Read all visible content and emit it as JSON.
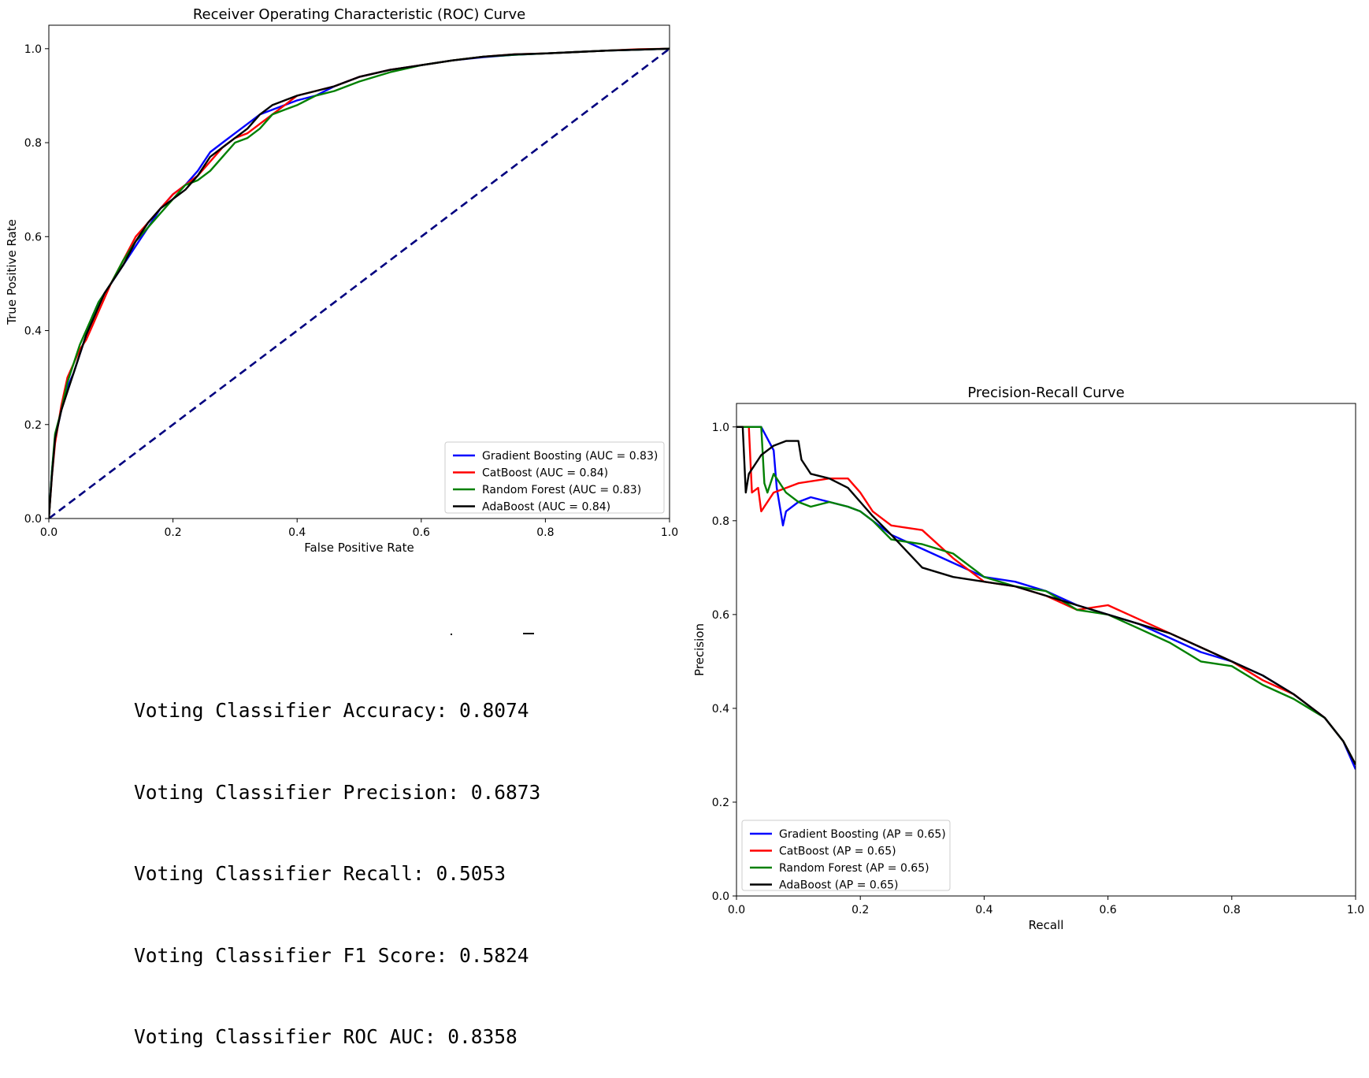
{
  "chart_data": [
    {
      "type": "line",
      "title": "Receiver Operating Characteristic (ROC) Curve",
      "xlabel": "False Positive Rate",
      "ylabel": "True Positive Rate",
      "xlim": [
        0.0,
        1.0
      ],
      "ylim": [
        0.0,
        1.05
      ],
      "xticks": [
        "0.0",
        "0.2",
        "0.4",
        "0.6",
        "0.8",
        "1.0"
      ],
      "yticks": [
        "0.0",
        "0.2",
        "0.4",
        "0.6",
        "0.8",
        "1.0"
      ],
      "legend_position": "lower-right",
      "reference_line": {
        "x": [
          0,
          1
        ],
        "y": [
          0,
          1
        ],
        "color": "#00007f",
        "style": "dashed"
      },
      "series": [
        {
          "name": "Gradient Boosting (AUC = 0.83)",
          "color": "#0000ff",
          "x": [
            0.0,
            0.005,
            0.01,
            0.02,
            0.03,
            0.04,
            0.05,
            0.06,
            0.07,
            0.08,
            0.09,
            0.1,
            0.12,
            0.14,
            0.16,
            0.18,
            0.2,
            0.22,
            0.24,
            0.26,
            0.28,
            0.3,
            0.32,
            0.34,
            0.36,
            0.38,
            0.4,
            0.43,
            0.46,
            0.5,
            0.55,
            0.6,
            0.65,
            0.7,
            0.75,
            0.8,
            0.85,
            0.9,
            0.95,
            1.0
          ],
          "y": [
            0.0,
            0.1,
            0.17,
            0.23,
            0.28,
            0.31,
            0.35,
            0.39,
            0.43,
            0.46,
            0.48,
            0.5,
            0.54,
            0.58,
            0.62,
            0.66,
            0.69,
            0.71,
            0.74,
            0.78,
            0.8,
            0.82,
            0.84,
            0.86,
            0.87,
            0.88,
            0.89,
            0.9,
            0.92,
            0.94,
            0.955,
            0.965,
            0.975,
            0.982,
            0.987,
            0.99,
            0.993,
            0.996,
            0.998,
            1.0
          ]
        },
        {
          "name": "CatBoost (AUC = 0.84)",
          "color": "#ff0000",
          "x": [
            0.0,
            0.005,
            0.01,
            0.02,
            0.03,
            0.04,
            0.05,
            0.06,
            0.07,
            0.08,
            0.09,
            0.1,
            0.12,
            0.14,
            0.16,
            0.18,
            0.2,
            0.22,
            0.24,
            0.26,
            0.28,
            0.3,
            0.32,
            0.34,
            0.36,
            0.38,
            0.4,
            0.43,
            0.46,
            0.5,
            0.55,
            0.6,
            0.65,
            0.7,
            0.75,
            0.8,
            0.85,
            0.9,
            0.95,
            1.0
          ],
          "y": [
            0.0,
            0.09,
            0.16,
            0.24,
            0.3,
            0.33,
            0.36,
            0.38,
            0.41,
            0.44,
            0.47,
            0.5,
            0.55,
            0.6,
            0.63,
            0.66,
            0.69,
            0.71,
            0.73,
            0.76,
            0.79,
            0.81,
            0.82,
            0.84,
            0.86,
            0.88,
            0.9,
            0.91,
            0.92,
            0.94,
            0.955,
            0.965,
            0.975,
            0.983,
            0.988,
            0.99,
            0.993,
            0.996,
            0.999,
            1.0
          ]
        },
        {
          "name": "Random Forest (AUC = 0.83)",
          "color": "#008000",
          "x": [
            0.0,
            0.005,
            0.01,
            0.02,
            0.03,
            0.04,
            0.05,
            0.06,
            0.07,
            0.08,
            0.09,
            0.1,
            0.12,
            0.14,
            0.16,
            0.18,
            0.2,
            0.22,
            0.24,
            0.26,
            0.28,
            0.3,
            0.32,
            0.34,
            0.36,
            0.38,
            0.4,
            0.43,
            0.46,
            0.5,
            0.55,
            0.6,
            0.65,
            0.7,
            0.75,
            0.8,
            0.85,
            0.9,
            0.95,
            1.0
          ],
          "y": [
            0.0,
            0.1,
            0.18,
            0.23,
            0.29,
            0.33,
            0.37,
            0.4,
            0.43,
            0.46,
            0.48,
            0.5,
            0.55,
            0.59,
            0.62,
            0.65,
            0.68,
            0.71,
            0.72,
            0.74,
            0.77,
            0.8,
            0.81,
            0.83,
            0.86,
            0.87,
            0.88,
            0.9,
            0.91,
            0.93,
            0.95,
            0.965,
            0.975,
            0.983,
            0.987,
            0.99,
            0.993,
            0.996,
            0.998,
            1.0
          ]
        },
        {
          "name": "AdaBoost (AUC = 0.84)",
          "color": "#000000",
          "x": [
            0.0,
            0.005,
            0.01,
            0.02,
            0.03,
            0.04,
            0.05,
            0.06,
            0.07,
            0.08,
            0.09,
            0.1,
            0.12,
            0.14,
            0.16,
            0.18,
            0.2,
            0.22,
            0.24,
            0.26,
            0.28,
            0.3,
            0.32,
            0.34,
            0.36,
            0.38,
            0.4,
            0.43,
            0.46,
            0.5,
            0.55,
            0.6,
            0.65,
            0.7,
            0.75,
            0.8,
            0.85,
            0.9,
            0.95,
            1.0
          ],
          "y": [
            0.0,
            0.09,
            0.17,
            0.23,
            0.27,
            0.31,
            0.35,
            0.39,
            0.42,
            0.45,
            0.48,
            0.5,
            0.54,
            0.59,
            0.63,
            0.66,
            0.68,
            0.7,
            0.73,
            0.77,
            0.79,
            0.81,
            0.83,
            0.86,
            0.88,
            0.89,
            0.9,
            0.91,
            0.92,
            0.94,
            0.955,
            0.965,
            0.975,
            0.983,
            0.988,
            0.99,
            0.993,
            0.996,
            0.998,
            1.0
          ]
        }
      ]
    },
    {
      "type": "line",
      "title": "Precision-Recall Curve",
      "xlabel": "Recall",
      "ylabel": "Precision",
      "xlim": [
        0.0,
        1.0
      ],
      "ylim": [
        0.0,
        1.05
      ],
      "xticks": [
        "0.0",
        "0.2",
        "0.4",
        "0.6",
        "0.8",
        "1.0"
      ],
      "yticks": [
        "0.0",
        "0.2",
        "0.4",
        "0.6",
        "0.8",
        "1.0"
      ],
      "legend_position": "lower-left",
      "series": [
        {
          "name": "Gradient Boosting (AP = 0.65)",
          "color": "#0000ff",
          "x": [
            0.0,
            0.02,
            0.04,
            0.06,
            0.065,
            0.075,
            0.08,
            0.1,
            0.12,
            0.15,
            0.18,
            0.2,
            0.22,
            0.25,
            0.3,
            0.35,
            0.4,
            0.45,
            0.5,
            0.55,
            0.6,
            0.65,
            0.7,
            0.75,
            0.8,
            0.85,
            0.9,
            0.95,
            0.98,
            1.0
          ],
          "y": [
            1.0,
            1.0,
            1.0,
            0.95,
            0.87,
            0.79,
            0.82,
            0.84,
            0.85,
            0.84,
            0.83,
            0.82,
            0.8,
            0.77,
            0.74,
            0.71,
            0.68,
            0.67,
            0.65,
            0.62,
            0.6,
            0.58,
            0.55,
            0.52,
            0.5,
            0.47,
            0.43,
            0.38,
            0.33,
            0.27
          ]
        },
        {
          "name": "CatBoost (AP = 0.65)",
          "color": "#ff0000",
          "x": [
            0.0,
            0.02,
            0.025,
            0.035,
            0.04,
            0.06,
            0.1,
            0.15,
            0.18,
            0.2,
            0.22,
            0.25,
            0.3,
            0.35,
            0.4,
            0.45,
            0.5,
            0.55,
            0.6,
            0.65,
            0.7,
            0.75,
            0.8,
            0.85,
            0.9,
            0.95,
            0.98,
            1.0
          ],
          "y": [
            1.0,
            1.0,
            0.86,
            0.87,
            0.82,
            0.86,
            0.88,
            0.89,
            0.89,
            0.86,
            0.82,
            0.79,
            0.78,
            0.72,
            0.67,
            0.66,
            0.64,
            0.61,
            0.62,
            0.59,
            0.56,
            0.53,
            0.5,
            0.46,
            0.43,
            0.38,
            0.33,
            0.28
          ]
        },
        {
          "name": "Random Forest (AP = 0.65)",
          "color": "#008000",
          "x": [
            0.0,
            0.03,
            0.04,
            0.045,
            0.05,
            0.06,
            0.08,
            0.1,
            0.12,
            0.15,
            0.18,
            0.2,
            0.22,
            0.25,
            0.3,
            0.35,
            0.4,
            0.45,
            0.5,
            0.55,
            0.6,
            0.65,
            0.7,
            0.75,
            0.8,
            0.85,
            0.9,
            0.95,
            0.98,
            1.0
          ],
          "y": [
            1.0,
            1.0,
            1.0,
            0.88,
            0.86,
            0.9,
            0.86,
            0.84,
            0.83,
            0.84,
            0.83,
            0.82,
            0.8,
            0.76,
            0.75,
            0.73,
            0.68,
            0.66,
            0.65,
            0.61,
            0.6,
            0.57,
            0.54,
            0.5,
            0.49,
            0.45,
            0.42,
            0.38,
            0.33,
            0.28
          ]
        },
        {
          "name": "AdaBoost (AP = 0.65)",
          "color": "#000000",
          "x": [
            0.0,
            0.01,
            0.015,
            0.02,
            0.04,
            0.06,
            0.08,
            0.1,
            0.105,
            0.12,
            0.15,
            0.18,
            0.2,
            0.22,
            0.25,
            0.3,
            0.35,
            0.4,
            0.45,
            0.5,
            0.55,
            0.6,
            0.65,
            0.7,
            0.75,
            0.8,
            0.85,
            0.9,
            0.95,
            0.98,
            1.0
          ],
          "y": [
            1.0,
            1.0,
            0.86,
            0.9,
            0.94,
            0.96,
            0.97,
            0.97,
            0.93,
            0.9,
            0.89,
            0.87,
            0.84,
            0.81,
            0.77,
            0.7,
            0.68,
            0.67,
            0.66,
            0.64,
            0.62,
            0.6,
            0.58,
            0.56,
            0.53,
            0.5,
            0.47,
            0.43,
            0.38,
            0.33,
            0.28
          ]
        }
      ]
    }
  ],
  "metrics": {
    "lines": [
      "Voting Classifier Accuracy: 0.8074",
      "Voting Classifier Precision: 0.6873",
      "Voting Classifier Recall: 0.5053",
      "Voting Classifier F1 Score: 0.5824",
      "Voting Classifier ROC AUC: 0.8358"
    ]
  }
}
